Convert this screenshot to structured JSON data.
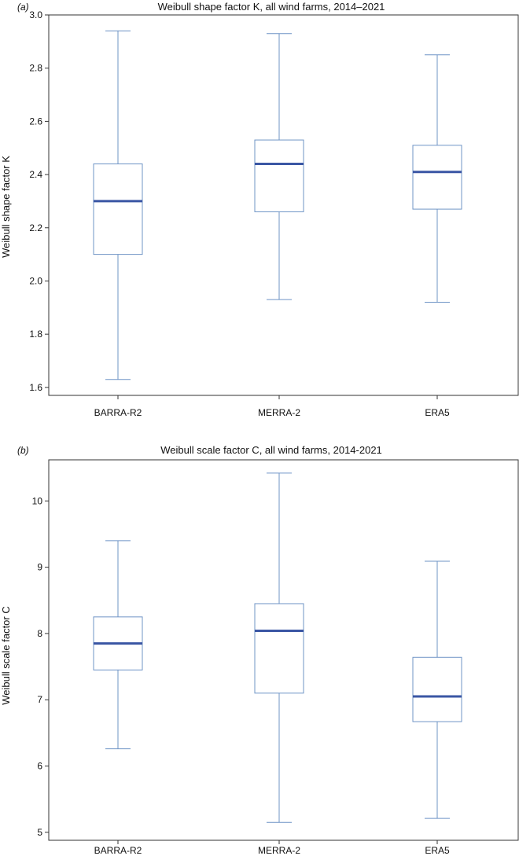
{
  "chart_data": [
    {
      "type": "box",
      "panel_label": "(a)",
      "title": "Weibull shape factor K, all wind farms, 2014–2021",
      "xlabel": "",
      "ylabel": "Weibull shape factor K",
      "ylim": [
        1.57,
        3.0
      ],
      "yticks": [
        1.6,
        1.8,
        2.0,
        2.2,
        2.4,
        2.6,
        2.8,
        3.0
      ],
      "ytick_labels": [
        "1.6",
        "1.8",
        "2.0",
        "2.2",
        "2.4",
        "2.6",
        "2.8",
        "3.0"
      ],
      "categories": [
        "BARRA-R2",
        "MERRA-2",
        "ERA5"
      ],
      "boxes": [
        {
          "min": 1.63,
          "q1": 2.1,
          "median": 2.3,
          "q3": 2.44,
          "max": 2.94
        },
        {
          "min": 1.93,
          "q1": 2.26,
          "median": 2.44,
          "q3": 2.53,
          "max": 2.93
        },
        {
          "min": 1.92,
          "q1": 2.27,
          "median": 2.41,
          "q3": 2.51,
          "max": 2.85
        }
      ],
      "box_color": "#6f94c6",
      "median_color": "#3a56a4",
      "grid": false
    },
    {
      "type": "box",
      "panel_label": "(b)",
      "title": "Weibull scale factor C, all wind farms, 2014-2021",
      "xlabel": "",
      "ylabel": "Weibull scale factor C",
      "ylim": [
        4.88,
        10.62
      ],
      "yticks": [
        5,
        6,
        7,
        8,
        9,
        10
      ],
      "ytick_labels": [
        "5",
        "6",
        "7",
        "8",
        "9",
        "10"
      ],
      "categories": [
        "BARRA-R2",
        "MERRA-2",
        "ERA5"
      ],
      "boxes": [
        {
          "min": 6.26,
          "q1": 7.45,
          "median": 7.85,
          "q3": 8.25,
          "max": 9.4
        },
        {
          "min": 5.15,
          "q1": 7.1,
          "median": 8.04,
          "q3": 8.45,
          "max": 10.42
        },
        {
          "min": 5.21,
          "q1": 6.67,
          "median": 7.05,
          "q3": 7.64,
          "max": 9.09
        }
      ],
      "box_color": "#6f94c6",
      "median_color": "#3a56a4",
      "grid": false
    }
  ]
}
